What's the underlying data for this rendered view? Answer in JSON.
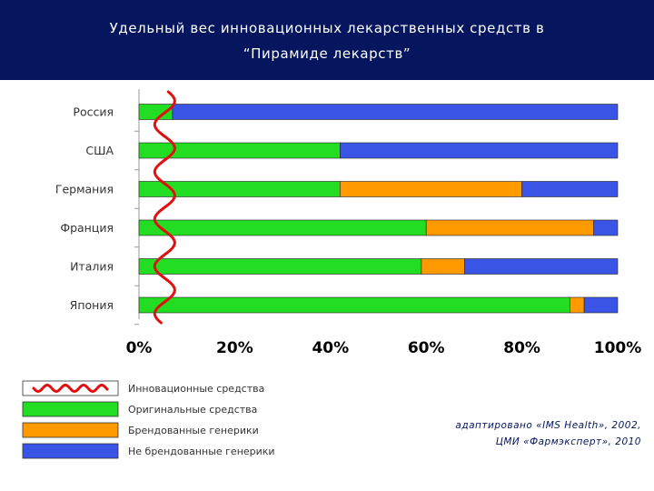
{
  "title_line1": "Удельный вес инновационных лекарственных средств в",
  "title_line2": "“Пирамиде лекарств”",
  "source_line1": "адаптировано «IMS Health», 2002,",
  "source_line2": "ЦМИ «Фармэксперт», 2010",
  "chart_data": {
    "type": "bar",
    "orientation": "horizontal",
    "stacked": true,
    "categories": [
      "Россия",
      "США",
      "Германия",
      "Франция",
      "Италия",
      "Япония"
    ],
    "series": [
      {
        "name": "Оригинальные средства",
        "color": "#22dd22",
        "values": [
          7,
          42,
          42,
          60,
          59,
          90
        ]
      },
      {
        "name": "Брендованные генерики",
        "color": "#ff9900",
        "values": [
          0,
          0,
          38,
          35,
          9,
          3
        ]
      },
      {
        "name": "Не брендованные генерики",
        "color": "#3a55e6",
        "values": [
          93,
          58,
          20,
          5,
          32,
          7
        ]
      }
    ],
    "overlay": {
      "name": "Инновационные средства",
      "color": "#e01010",
      "value": 5
    },
    "xlim": [
      0,
      100
    ],
    "xticks": [
      "0%",
      "20%",
      "40%",
      "60%",
      "80%",
      "100%"
    ],
    "grid": false,
    "legend_position": "bottom-left"
  }
}
